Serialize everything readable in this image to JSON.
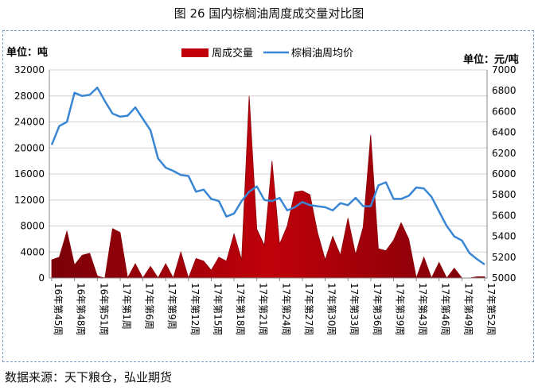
{
  "figure_title": "图 26  国内棕榈油周度成交量对比图",
  "source_note": "数据来源：天下粮仓，弘业期货",
  "chart_data": {
    "type": "bar",
    "combo": "area + line",
    "left_unit": "单位：吨",
    "right_unit": "单位：元/吨",
    "legend_position": "top",
    "y_left_lim": [
      0,
      32000
    ],
    "y_left_ticks": [
      0,
      4000,
      8000,
      12000,
      16000,
      20000,
      24000,
      28000,
      32000
    ],
    "y_right_lim": [
      5000,
      7000
    ],
    "y_right_ticks": [
      5000,
      5200,
      5400,
      5600,
      5800,
      6000,
      6200,
      6400,
      6600,
      6800,
      7000
    ],
    "grid": true,
    "x_tick_labels": [
      "16年第45周",
      "16年第48周",
      "16年第51周",
      "17年第1周",
      "17年第6周",
      "17年第9周",
      "17年第12周",
      "17年第15周",
      "17年第18周",
      "17年第21周",
      "17年第24周",
      "17年第27周",
      "17年第30周",
      "17年第33周",
      "17年第36周",
      "17年第39周",
      "17年第43周",
      "17年第46周",
      "17年第49周",
      "17年第52周"
    ],
    "x_tick_positions": [
      0,
      3,
      6,
      9,
      12,
      15,
      18,
      21,
      24,
      27,
      30,
      33,
      36,
      39,
      42,
      45,
      48,
      51,
      54,
      57
    ],
    "series": [
      {
        "name": "周成交量",
        "kind": "area",
        "color": "#c0000b",
        "values": [
          2800,
          3200,
          7200,
          2000,
          3500,
          3800,
          300,
          0,
          7600,
          7000,
          0,
          2200,
          0,
          1800,
          0,
          2200,
          0,
          4000,
          0,
          3000,
          2600,
          1200,
          3200,
          2600,
          6800,
          2800,
          28000,
          7500,
          5000,
          18000,
          5200,
          8000,
          13200,
          13400,
          12800,
          7000,
          2800,
          6400,
          3500,
          9200,
          3600,
          7800,
          22000,
          4500,
          4200,
          5800,
          8500,
          6000,
          0,
          3200,
          0,
          2400,
          0,
          1500,
          0,
          0,
          200,
          200
        ]
      },
      {
        "name": "棕榈油周均价",
        "kind": "line",
        "color": "#3a86d4",
        "values": [
          6280,
          6460,
          6500,
          6780,
          6750,
          6760,
          6830,
          6700,
          6580,
          6550,
          6560,
          6640,
          6530,
          6420,
          6150,
          6060,
          6030,
          5990,
          5980,
          5830,
          5850,
          5760,
          5740,
          5590,
          5620,
          5740,
          5830,
          5880,
          5750,
          5740,
          5770,
          5650,
          5680,
          5730,
          5700,
          5690,
          5680,
          5650,
          5720,
          5700,
          5770,
          5690,
          5690,
          5890,
          5920,
          5760,
          5760,
          5790,
          5870,
          5860,
          5780,
          5640,
          5500,
          5400,
          5360,
          5240,
          5180,
          5130
        ]
      }
    ]
  }
}
